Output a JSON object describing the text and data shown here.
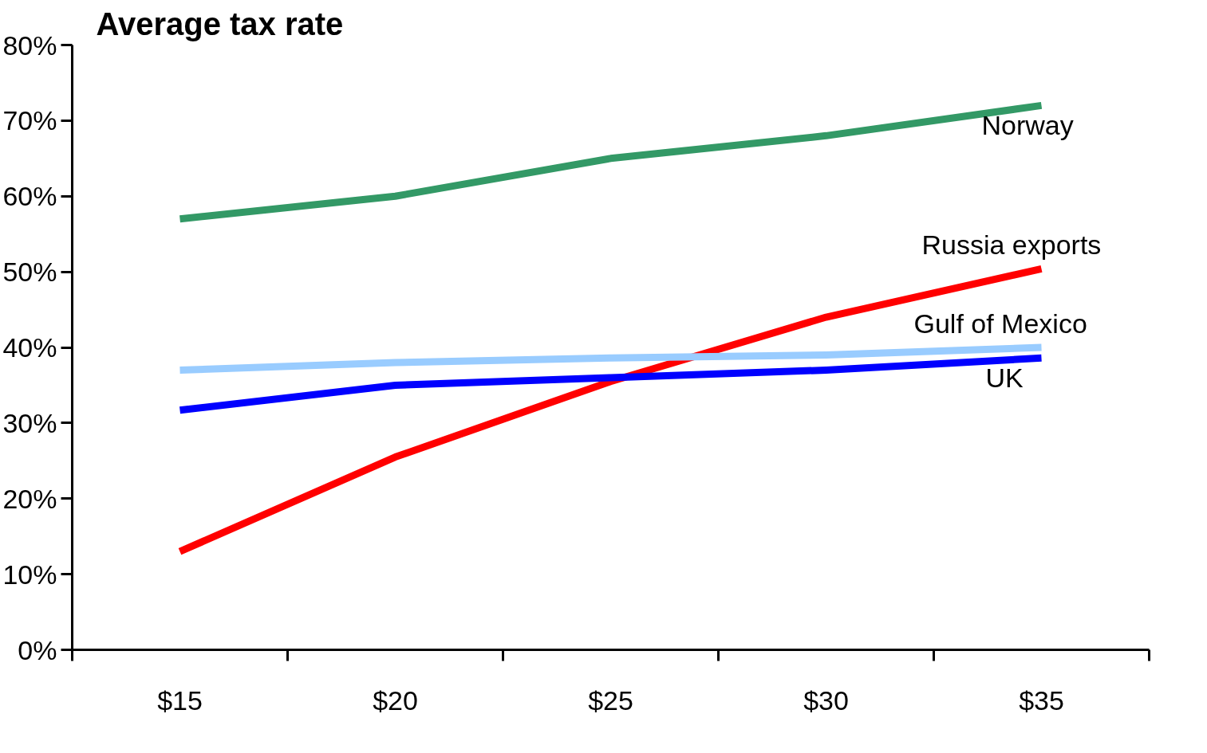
{
  "chart_data": {
    "type": "line",
    "title": "Average tax rate",
    "categories": [
      "$15",
      "$20",
      "$25",
      "$30",
      "$35"
    ],
    "series": [
      {
        "name": "Norway",
        "color": "#339966",
        "values": [
          57,
          60,
          65,
          68,
          72
        ]
      },
      {
        "name": "Russia exports",
        "color": "#ff0000",
        "values": [
          13,
          25.5,
          35.5,
          44,
          50.4
        ]
      },
      {
        "name": "Gulf of Mexico",
        "color": "#99ccff",
        "values": [
          37,
          38,
          38.6,
          39,
          40
        ]
      },
      {
        "name": "UK",
        "color": "#0000ff",
        "values": [
          31.7,
          35,
          36,
          37,
          38.6
        ]
      }
    ],
    "ylim": [
      0,
      80
    ],
    "yticks": [
      {
        "value": 0,
        "label": "0%"
      },
      {
        "value": 10,
        "label": "10%"
      },
      {
        "value": 20,
        "label": "20%"
      },
      {
        "value": 30,
        "label": "30%"
      },
      {
        "value": 40,
        "label": "40%"
      },
      {
        "value": 50,
        "label": "50%"
      },
      {
        "value": 60,
        "label": "60%"
      },
      {
        "value": 70,
        "label": "70%"
      },
      {
        "value": 80,
        "label": "80%"
      }
    ],
    "grid": false,
    "marker": "none",
    "line_style": "solid"
  }
}
